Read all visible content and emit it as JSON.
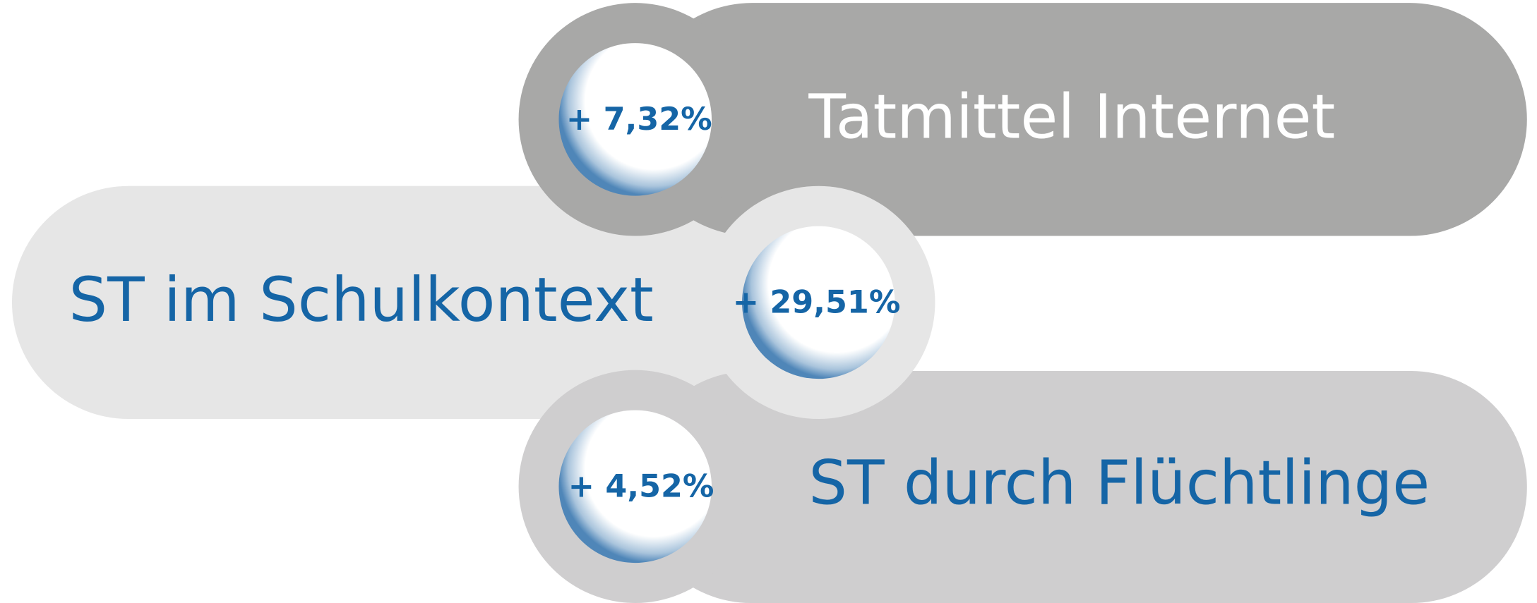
{
  "items": [
    {
      "label": "Tatmittel Internet",
      "change": "+ 7,32%"
    },
    {
      "label": "ST im Schulkontext",
      "change": "+ 29,51%"
    },
    {
      "label": "ST durch Flüchtlinge",
      "change": "+ 4,52%"
    }
  ]
}
